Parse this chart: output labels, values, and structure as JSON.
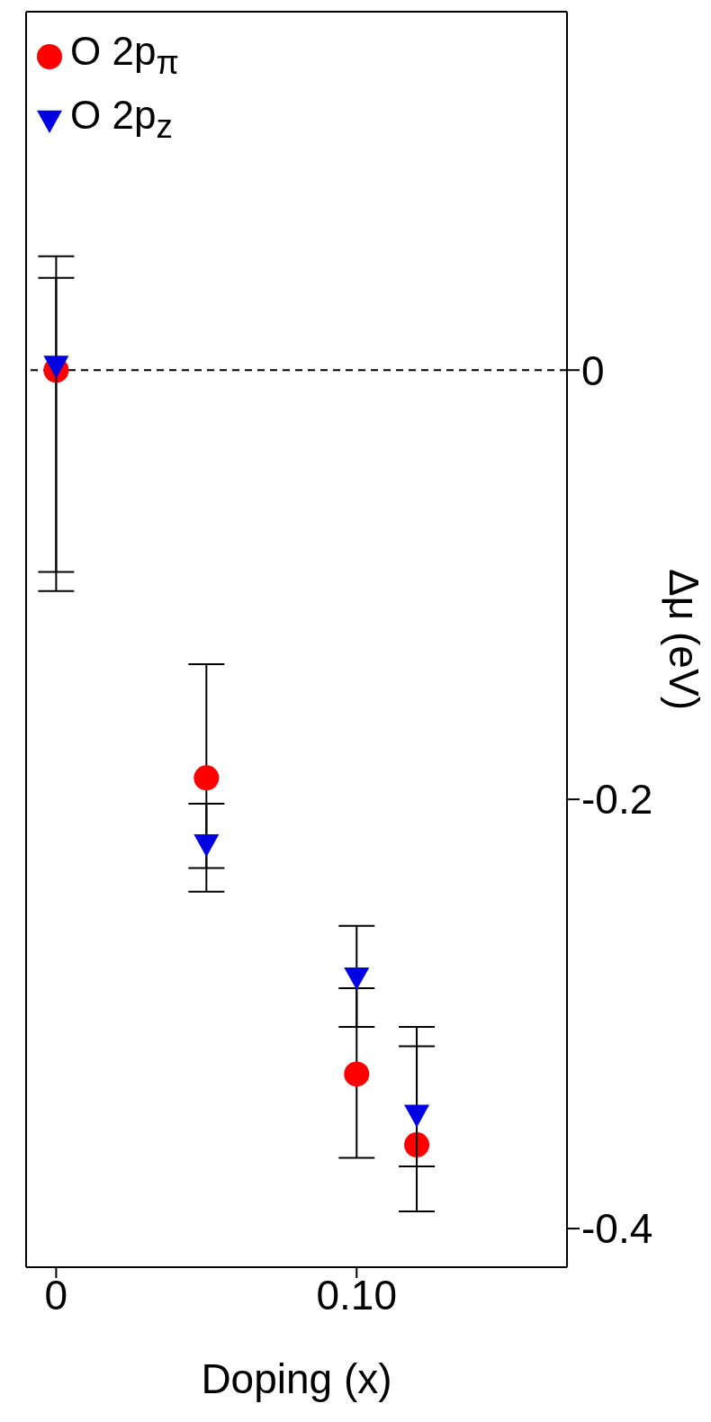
{
  "chart_data": {
    "type": "scatter",
    "xlabel": "Doping (x)",
    "ylabel": "Δμ (eV)",
    "x": [
      0,
      0.05,
      0.1,
      0.12
    ],
    "series": [
      {
        "name": "O 2p$_{π}$",
        "color": "#ff0000",
        "marker": "circle",
        "values": [
          0,
          -0.19,
          -0.328,
          -0.361
        ],
        "errors": [
          [
            -0.094,
            0.043
          ],
          [
            -0.232,
            -0.137
          ],
          [
            -0.367,
            -0.288
          ],
          [
            -0.392,
            -0.306
          ]
        ]
      },
      {
        "name": "O 2p$_{z}$",
        "color": "#0000e0",
        "marker": "triangle",
        "values": [
          0.002,
          -0.221,
          -0.283,
          -0.347
        ],
        "errors": [
          [
            -0.103,
            0.053
          ],
          [
            -0.243,
            -0.202
          ],
          [
            -0.306,
            -0.259
          ],
          [
            -0.371,
            -0.315
          ]
        ]
      }
    ],
    "xlim": [
      -0.01,
      0.17
    ],
    "xticks": [
      0,
      {
        "value": 0.1,
        "label": "0.10"
      }
    ],
    "ylim": [
      -0.418,
      0.167
    ],
    "yticks": [
      0,
      -0.2,
      -0.4
    ],
    "ref_lines": [
      {
        "axis": "y",
        "value": 0,
        "line_style": "dashed",
        "color": "#000000"
      }
    ],
    "legend": "top left",
    "grid": false
  }
}
